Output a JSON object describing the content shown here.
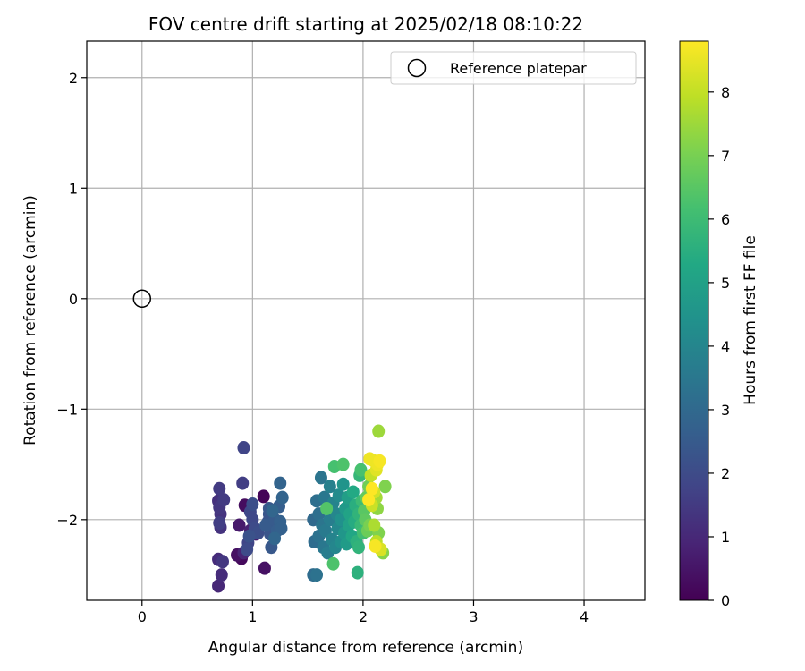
{
  "chart_data": {
    "type": "scatter",
    "title": "FOV centre drift starting at 2025/02/18 08:10:22",
    "xlabel": "Angular distance from reference (arcmin)",
    "ylabel": "Rotation from reference (arcmin)",
    "xlim": [
      -0.5,
      4.55
    ],
    "ylim": [
      -2.73,
      2.33
    ],
    "xticks": [
      0,
      1,
      2,
      3,
      4
    ],
    "yticks": [
      -2,
      -1,
      0,
      1,
      2
    ],
    "grid": true,
    "legend": {
      "placement": "top-right",
      "entries": [
        "Reference platepar"
      ]
    },
    "reference_point": {
      "x": 0,
      "y": 0,
      "marker": "open-circle",
      "color": "#000000"
    },
    "colorbar": {
      "label": "Hours from first FF file",
      "range": [
        0,
        8.8
      ],
      "ticks": [
        0,
        1,
        2,
        3,
        4,
        5,
        6,
        7,
        8
      ],
      "colormap": "viridis"
    },
    "series": [
      {
        "color_by": "hours",
        "points": [
          {
            "x": 1.1,
            "y": -1.79,
            "c": 0.1
          },
          {
            "x": 0.9,
            "y": -2.35,
            "c": 0.2
          },
          {
            "x": 0.93,
            "y": -1.87,
            "c": 0.3
          },
          {
            "x": 1.11,
            "y": -2.44,
            "c": 0.4
          },
          {
            "x": 0.86,
            "y": -2.32,
            "c": 0.4
          },
          {
            "x": 0.88,
            "y": -2.05,
            "c": 0.6
          },
          {
            "x": 1.03,
            "y": -2.13,
            "c": 0.7
          },
          {
            "x": 0.98,
            "y": -2.1,
            "c": 0.8
          },
          {
            "x": 0.92,
            "y": -2.3,
            "c": 0.9
          },
          {
            "x": 0.69,
            "y": -2.6,
            "c": 1.0
          },
          {
            "x": 0.69,
            "y": -2.36,
            "c": 1.1
          },
          {
            "x": 0.72,
            "y": -2.5,
            "c": 1.1
          },
          {
            "x": 0.69,
            "y": -1.83,
            "c": 1.2
          },
          {
            "x": 0.71,
            "y": -1.95,
            "c": 1.3
          },
          {
            "x": 0.71,
            "y": -2.07,
            "c": 1.3
          },
          {
            "x": 0.73,
            "y": -2.38,
            "c": 1.4
          },
          {
            "x": 0.7,
            "y": -1.89,
            "c": 1.4
          },
          {
            "x": 0.74,
            "y": -1.82,
            "c": 1.5
          },
          {
            "x": 0.7,
            "y": -1.72,
            "c": 1.5
          },
          {
            "x": 0.7,
            "y": -2.03,
            "c": 1.6
          },
          {
            "x": 0.91,
            "y": -1.67,
            "c": 1.6
          },
          {
            "x": 0.92,
            "y": -1.35,
            "c": 1.8
          },
          {
            "x": 0.96,
            "y": -2.21,
            "c": 1.8
          },
          {
            "x": 0.98,
            "y": -1.93,
            "c": 1.9
          },
          {
            "x": 1.0,
            "y": -2.0,
            "c": 1.9
          },
          {
            "x": 1.02,
            "y": -2.08,
            "c": 2.0
          },
          {
            "x": 0.95,
            "y": -2.27,
            "c": 2.0
          },
          {
            "x": 1.0,
            "y": -1.86,
            "c": 2.1
          },
          {
            "x": 1.05,
            "y": -2.12,
            "c": 2.1
          },
          {
            "x": 0.97,
            "y": -2.15,
            "c": 2.2
          },
          {
            "x": 1.14,
            "y": -2.02,
            "c": 2.2
          },
          {
            "x": 1.15,
            "y": -1.95,
            "c": 2.3
          },
          {
            "x": 1.16,
            "y": -2.13,
            "c": 2.3
          },
          {
            "x": 1.17,
            "y": -2.25,
            "c": 2.4
          },
          {
            "x": 1.15,
            "y": -1.9,
            "c": 2.4
          },
          {
            "x": 1.12,
            "y": -2.05,
            "c": 2.5
          },
          {
            "x": 1.2,
            "y": -2.0,
            "c": 2.5
          },
          {
            "x": 1.22,
            "y": -2.1,
            "c": 2.6
          },
          {
            "x": 1.24,
            "y": -1.88,
            "c": 2.6
          },
          {
            "x": 1.25,
            "y": -2.02,
            "c": 2.7
          },
          {
            "x": 1.26,
            "y": -2.08,
            "c": 2.7
          },
          {
            "x": 1.27,
            "y": -1.8,
            "c": 2.8
          },
          {
            "x": 1.25,
            "y": -1.67,
            "c": 2.8
          },
          {
            "x": 1.2,
            "y": -2.17,
            "c": 2.9
          },
          {
            "x": 1.18,
            "y": -1.92,
            "c": 2.9
          },
          {
            "x": 1.55,
            "y": -2.0,
            "c": 3.0
          },
          {
            "x": 1.56,
            "y": -2.2,
            "c": 3.1
          },
          {
            "x": 1.55,
            "y": -2.5,
            "c": 3.1
          },
          {
            "x": 1.58,
            "y": -1.83,
            "c": 3.2
          },
          {
            "x": 1.6,
            "y": -1.95,
            "c": 3.2
          },
          {
            "x": 1.58,
            "y": -2.5,
            "c": 3.3
          },
          {
            "x": 1.6,
            "y": -2.15,
            "c": 3.3
          },
          {
            "x": 1.62,
            "y": -1.62,
            "c": 3.4
          },
          {
            "x": 1.63,
            "y": -2.05,
            "c": 3.4
          },
          {
            "x": 1.64,
            "y": -2.25,
            "c": 3.5
          },
          {
            "x": 1.65,
            "y": -1.8,
            "c": 3.5
          },
          {
            "x": 1.66,
            "y": -2.1,
            "c": 3.6
          },
          {
            "x": 1.67,
            "y": -1.9,
            "c": 3.6
          },
          {
            "x": 1.68,
            "y": -2.3,
            "c": 3.7
          },
          {
            "x": 1.7,
            "y": -2.0,
            "c": 3.7
          },
          {
            "x": 1.7,
            "y": -1.7,
            "c": 3.8
          },
          {
            "x": 1.72,
            "y": -2.18,
            "c": 3.9
          },
          {
            "x": 1.73,
            "y": -1.85,
            "c": 3.9
          },
          {
            "x": 1.75,
            "y": -2.25,
            "c": 4.0
          },
          {
            "x": 1.76,
            "y": -1.95,
            "c": 4.0
          },
          {
            "x": 1.77,
            "y": -2.08,
            "c": 4.1
          },
          {
            "x": 1.78,
            "y": -1.78,
            "c": 4.2
          },
          {
            "x": 1.8,
            "y": -2.2,
            "c": 4.3
          },
          {
            "x": 1.8,
            "y": -2.0,
            "c": 4.4
          },
          {
            "x": 1.82,
            "y": -1.68,
            "c": 4.5
          },
          {
            "x": 1.83,
            "y": -2.12,
            "c": 4.6
          },
          {
            "x": 1.84,
            "y": -1.9,
            "c": 4.7
          },
          {
            "x": 1.85,
            "y": -2.22,
            "c": 4.8
          },
          {
            "x": 1.86,
            "y": -1.8,
            "c": 4.9
          },
          {
            "x": 1.87,
            "y": -2.05,
            "c": 5.0
          },
          {
            "x": 1.88,
            "y": -1.95,
            "c": 5.1
          },
          {
            "x": 1.9,
            "y": -2.15,
            "c": 5.2
          },
          {
            "x": 1.91,
            "y": -1.75,
            "c": 5.3
          },
          {
            "x": 1.92,
            "y": -2.02,
            "c": 5.4
          },
          {
            "x": 1.93,
            "y": -1.87,
            "c": 5.5
          },
          {
            "x": 1.94,
            "y": -2.2,
            "c": 5.6
          },
          {
            "x": 1.95,
            "y": -2.48,
            "c": 5.6
          },
          {
            "x": 1.96,
            "y": -2.25,
            "c": 5.7
          },
          {
            "x": 1.96,
            "y": -1.95,
            "c": 5.7
          },
          {
            "x": 1.97,
            "y": -1.6,
            "c": 5.8
          },
          {
            "x": 1.98,
            "y": -2.05,
            "c": 5.9
          },
          {
            "x": 1.99,
            "y": -1.83,
            "c": 6.0
          },
          {
            "x": 2.0,
            "y": -2.12,
            "c": 6.1
          },
          {
            "x": 1.98,
            "y": -1.55,
            "c": 6.2
          },
          {
            "x": 1.74,
            "y": -1.52,
            "c": 6.2
          },
          {
            "x": 1.82,
            "y": -1.5,
            "c": 6.3
          },
          {
            "x": 1.73,
            "y": -2.4,
            "c": 6.3
          },
          {
            "x": 1.67,
            "y": -1.9,
            "c": 6.4
          },
          {
            "x": 2.01,
            "y": -1.92,
            "c": 6.5
          },
          {
            "x": 2.02,
            "y": -2.0,
            "c": 6.6
          },
          {
            "x": 2.03,
            "y": -1.8,
            "c": 6.7
          },
          {
            "x": 2.04,
            "y": -2.1,
            "c": 6.8
          },
          {
            "x": 2.05,
            "y": -1.7,
            "c": 6.9
          },
          {
            "x": 2.06,
            "y": -2.05,
            "c": 7.0
          },
          {
            "x": 2.14,
            "y": -2.12,
            "c": 7.1
          },
          {
            "x": 2.2,
            "y": -1.7,
            "c": 7.1
          },
          {
            "x": 2.18,
            "y": -2.3,
            "c": 7.2
          },
          {
            "x": 2.13,
            "y": -1.9,
            "c": 7.3
          },
          {
            "x": 2.14,
            "y": -1.2,
            "c": 7.5
          },
          {
            "x": 2.12,
            "y": -1.8,
            "c": 7.6
          },
          {
            "x": 2.1,
            "y": -2.05,
            "c": 7.7
          },
          {
            "x": 2.12,
            "y": -2.2,
            "c": 7.9
          },
          {
            "x": 2.07,
            "y": -1.6,
            "c": 8.0
          },
          {
            "x": 2.08,
            "y": -1.87,
            "c": 8.1
          },
          {
            "x": 2.1,
            "y": -1.75,
            "c": 8.2
          },
          {
            "x": 2.16,
            "y": -2.27,
            "c": 8.3
          },
          {
            "x": 2.12,
            "y": -1.55,
            "c": 8.4
          },
          {
            "x": 2.1,
            "y": -1.47,
            "c": 8.5
          },
          {
            "x": 2.06,
            "y": -1.45,
            "c": 8.6
          },
          {
            "x": 2.13,
            "y": -1.5,
            "c": 8.6
          },
          {
            "x": 2.15,
            "y": -1.47,
            "c": 8.7
          },
          {
            "x": 2.11,
            "y": -2.24,
            "c": 8.7
          },
          {
            "x": 2.08,
            "y": -1.72,
            "c": 8.8
          },
          {
            "x": 2.05,
            "y": -1.82,
            "c": 8.8
          }
        ]
      }
    ]
  }
}
